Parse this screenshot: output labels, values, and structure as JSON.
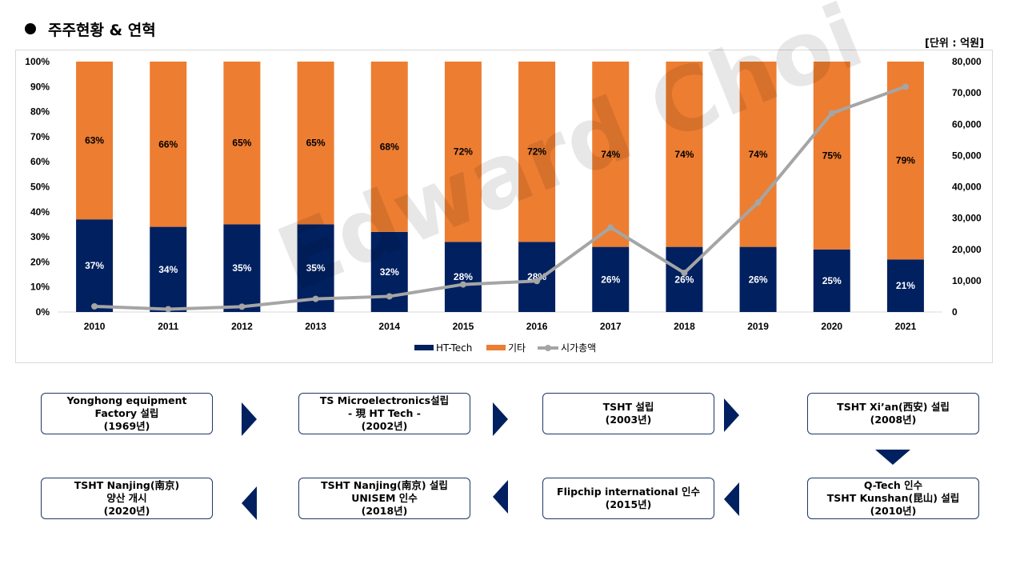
{
  "header": {
    "title": "주주현황 & 연혁",
    "unit": "[단위 : 억원]"
  },
  "watermark": "Edward Choi",
  "chart_data": {
    "type": "bar",
    "stacked": "percent",
    "categories": [
      "2010",
      "2011",
      "2012",
      "2013",
      "2014",
      "2015",
      "2016",
      "2017",
      "2018",
      "2019",
      "2020",
      "2021"
    ],
    "series": [
      {
        "name": "HT-Tech",
        "color": "#002060",
        "values": [
          37,
          34,
          35,
          35,
          32,
          28,
          28,
          26,
          26,
          26,
          25,
          21
        ],
        "labels": [
          "37%",
          "34%",
          "35%",
          "35%",
          "32%",
          "28%",
          "28%",
          "26%",
          "26%",
          "26%",
          "25%",
          "21%"
        ]
      },
      {
        "name": "기타",
        "color": "#ed7d31",
        "values": [
          63,
          66,
          65,
          65,
          68,
          72,
          72,
          74,
          74,
          74,
          75,
          79
        ],
        "labels": [
          "63%",
          "66%",
          "65%",
          "65%",
          "68%",
          "72%",
          "72%",
          "74%",
          "74%",
          "74%",
          "75%",
          "79%"
        ]
      }
    ],
    "line_series": {
      "name": "시가총액",
      "color": "#a5a5a5",
      "axis": "right",
      "values": [
        1800,
        900,
        1700,
        4200,
        5000,
        8800,
        9900,
        27000,
        12500,
        35000,
        63500,
        72000
      ]
    },
    "left_axis": {
      "ylim": [
        0,
        100
      ],
      "ticks": [
        "0%",
        "10%",
        "20%",
        "30%",
        "40%",
        "50%",
        "60%",
        "70%",
        "80%",
        "90%",
        "100%"
      ]
    },
    "right_axis": {
      "ylim": [
        0,
        80000
      ],
      "ticks": [
        "0",
        "10,000",
        "20,000",
        "30,000",
        "40,000",
        "50,000",
        "60,000",
        "70,000",
        "80,000"
      ]
    },
    "legend": {
      "position": "bottom",
      "items": [
        "HT-Tech",
        "기타",
        "시가총액"
      ]
    },
    "grid": false
  },
  "timeline": {
    "steps": [
      {
        "lines": [
          "Yonghong  equipment",
          "Factory 설립",
          "(1969년)"
        ]
      },
      {
        "lines": [
          "TS Microelectronics설립",
          "- 現 HT Tech -",
          "(2002년)"
        ]
      },
      {
        "lines": [
          "TSHT 설립",
          "(2003년)"
        ]
      },
      {
        "lines": [
          "TSHT Xi’an(西安) 설립",
          "(2008년)"
        ]
      },
      {
        "lines": [
          "Q-Tech 인수",
          "TSHT Kunshan(昆山) 설립",
          "(2010년)"
        ]
      },
      {
        "lines": [
          "Flipchip international 인수",
          "(2015년)"
        ]
      },
      {
        "lines": [
          "TSHT Nanjing(南京) 설립",
          "UNISEM 인수",
          "(2018년)"
        ]
      },
      {
        "lines": [
          "TSHT Nanjing(南京)",
          "양산 개시",
          "(2020년)"
        ]
      }
    ]
  }
}
